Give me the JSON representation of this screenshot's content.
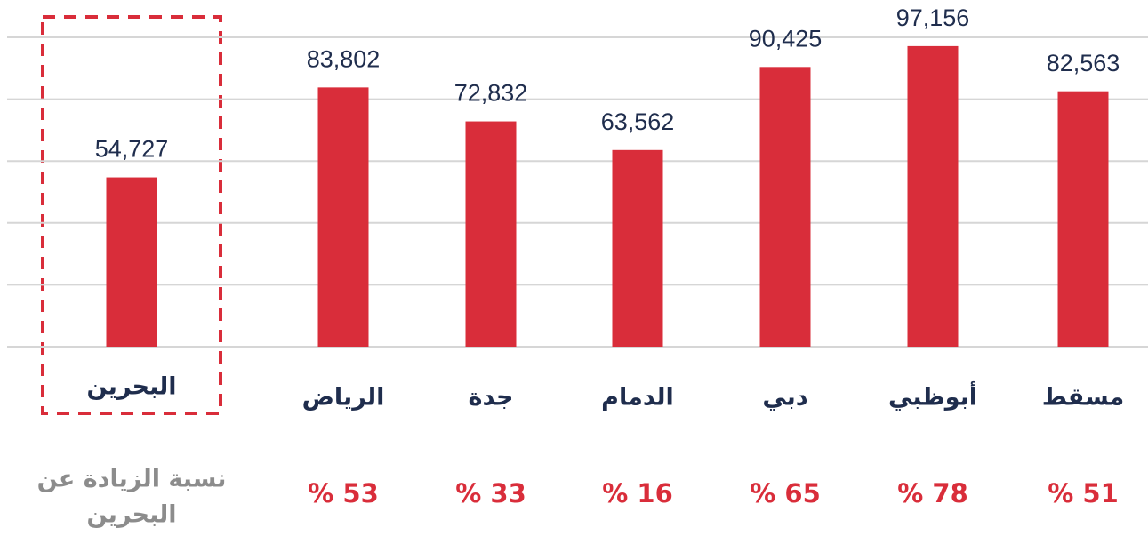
{
  "chart_data": {
    "type": "bar",
    "categories": [
      "البحرين",
      "الرياض",
      "جدة",
      "الدمام",
      "دبي",
      "أبوظبي",
      "مسقط"
    ],
    "values": [
      54727,
      83802,
      72832,
      63562,
      90425,
      97156,
      82563
    ],
    "value_labels": [
      "54,727",
      "83,802",
      "72,832",
      "63,562",
      "90,425",
      "97,156",
      "82,563"
    ],
    "color": "#d92d3a",
    "ylim": [
      0,
      100000
    ],
    "yticks": [
      0,
      20000,
      40000,
      60000,
      80000,
      100000
    ],
    "grid": true,
    "increase_title": [
      "نسبة الزيادة عن",
      "البحرين"
    ],
    "increase": [
      "% 53",
      "% 33",
      "% 16",
      "% 65",
      "% 78",
      "% 51"
    ]
  }
}
